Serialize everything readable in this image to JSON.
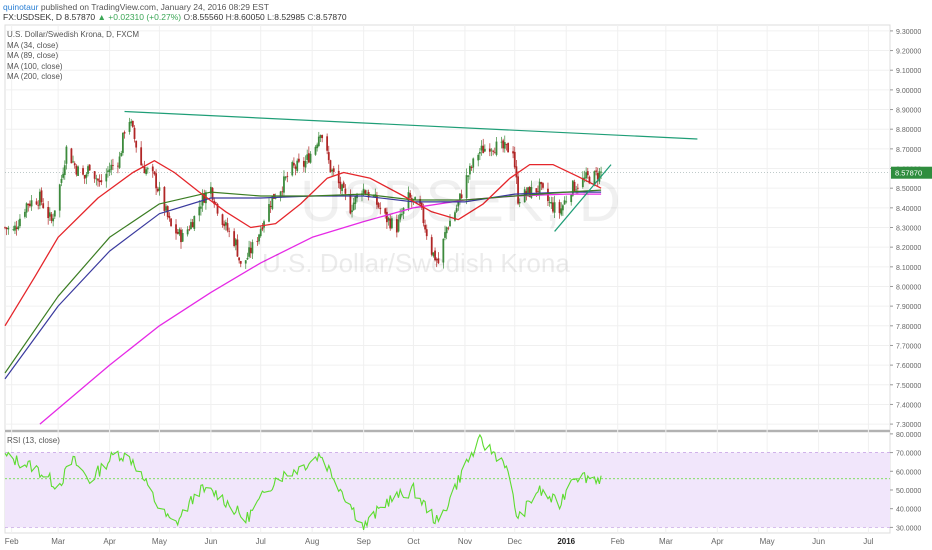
{
  "header": {
    "user": "quinotaur",
    "published": " published on TradingView.com, January 24, 2016 08:29 EST",
    "symbol": "FX:USDSEK, D",
    "last": "8.57870",
    "change": "▲ +0.02310 (+0.27%)",
    "o_label": "O:",
    "o_val": "8.55560",
    "h_label": "H:",
    "h_val": "8.60050",
    "l_label": "L:",
    "l_val": "8.52985",
    "c_label": "C:",
    "c_val": "8.57870"
  },
  "legend": {
    "title": "U.S. Dollar/Swedish Krona, D, FXCM",
    "ma34": "MA (34, close)",
    "ma89": "MA (89, close)",
    "ma100": "MA (100, close)",
    "ma200": "MA (200, close)"
  },
  "watermark": {
    "symbol": "USDSEK, D",
    "name": "U.S. Dollar/Swedish Krona"
  },
  "rsi_legend": "RSI (13, close)",
  "colors": {
    "ma34": "#e5262b",
    "ma89": "#3b7d23",
    "ma100": "#3a3a9e",
    "ma200": "#e62ae6",
    "trendline": "#1f9e77",
    "rsi": "#5ddc2f",
    "rsi_band": "#f1e6fb",
    "candle_up": "#3c8a3c",
    "candle_down": "#b02626",
    "last_price_tag": "#2f8d3e"
  },
  "chart_data": {
    "type": "candlestick",
    "x_axis_labels": [
      "Feb",
      "Mar",
      "Apr",
      "May",
      "Jun",
      "Jul",
      "Aug",
      "Sep",
      "Oct",
      "Nov",
      "Dec",
      "2016",
      "Feb",
      "Mar",
      "Apr",
      "May",
      "Jun",
      "Jul"
    ],
    "y_axis_labels": [
      "9.30000",
      "9.20000",
      "9.10000",
      "9.00000",
      "8.90000",
      "8.80000",
      "8.70000",
      "8.60000",
      "8.50000",
      "8.40000",
      "8.30000",
      "8.20000",
      "8.10000",
      "8.00000",
      "7.90000",
      "7.80000",
      "7.70000",
      "7.60000",
      "7.50000",
      "7.40000",
      "7.30000"
    ],
    "ylim": [
      7.27,
      9.33
    ],
    "last_price_label": "8.57870",
    "price_trajectory": [
      {
        "date": "2015-01-28",
        "close": 8.3
      },
      {
        "date": "2015-02-02",
        "close": 8.28
      },
      {
        "date": "2015-02-10",
        "close": 8.42
      },
      {
        "date": "2015-02-18",
        "close": 8.45
      },
      {
        "date": "2015-02-25",
        "close": 8.33
      },
      {
        "date": "2015-03-03",
        "close": 8.55
      },
      {
        "date": "2015-03-06",
        "close": 8.7
      },
      {
        "date": "2015-03-12",
        "close": 8.6
      },
      {
        "date": "2015-03-17",
        "close": 8.55
      },
      {
        "date": "2015-03-20",
        "close": 8.62
      },
      {
        "date": "2015-03-26",
        "close": 8.52
      },
      {
        "date": "2015-04-01",
        "close": 8.6
      },
      {
        "date": "2015-04-07",
        "close": 8.65
      },
      {
        "date": "2015-04-10",
        "close": 8.8
      },
      {
        "date": "2015-04-13",
        "close": 8.85
      },
      {
        "date": "2015-04-20",
        "close": 8.62
      },
      {
        "date": "2015-04-28",
        "close": 8.55
      },
      {
        "date": "2015-05-04",
        "close": 8.4
      },
      {
        "date": "2015-05-08",
        "close": 8.3
      },
      {
        "date": "2015-05-15",
        "close": 8.25
      },
      {
        "date": "2015-05-22",
        "close": 8.35
      },
      {
        "date": "2015-05-27",
        "close": 8.45
      },
      {
        "date": "2015-06-01",
        "close": 8.5
      },
      {
        "date": "2015-06-05",
        "close": 8.4
      },
      {
        "date": "2015-06-10",
        "close": 8.3
      },
      {
        "date": "2015-06-16",
        "close": 8.22
      },
      {
        "date": "2015-06-19",
        "close": 8.1
      },
      {
        "date": "2015-06-23",
        "close": 8.15
      },
      {
        "date": "2015-06-29",
        "close": 8.25
      },
      {
        "date": "2015-07-03",
        "close": 8.35
      },
      {
        "date": "2015-07-08",
        "close": 8.45
      },
      {
        "date": "2015-07-13",
        "close": 8.5
      },
      {
        "date": "2015-07-20",
        "close": 8.6
      },
      {
        "date": "2015-07-27",
        "close": 8.62
      },
      {
        "date": "2015-08-03",
        "close": 8.72
      },
      {
        "date": "2015-08-06",
        "close": 8.8
      },
      {
        "date": "2015-08-12",
        "close": 8.6
      },
      {
        "date": "2015-08-17",
        "close": 8.52
      },
      {
        "date": "2015-08-24",
        "close": 8.4
      },
      {
        "date": "2015-08-31",
        "close": 8.5
      },
      {
        "date": "2015-09-07",
        "close": 8.45
      },
      {
        "date": "2015-09-14",
        "close": 8.35
      },
      {
        "date": "2015-09-21",
        "close": 8.3
      },
      {
        "date": "2015-09-28",
        "close": 8.45
      },
      {
        "date": "2015-10-05",
        "close": 8.4
      },
      {
        "date": "2015-10-12",
        "close": 8.18
      },
      {
        "date": "2015-10-16",
        "close": 8.12
      },
      {
        "date": "2015-10-21",
        "close": 8.3
      },
      {
        "date": "2015-10-27",
        "close": 8.4
      },
      {
        "date": "2015-11-02",
        "close": 8.55
      },
      {
        "date": "2015-11-09",
        "close": 8.68
      },
      {
        "date": "2015-11-16",
        "close": 8.72
      },
      {
        "date": "2015-11-24",
        "close": 8.7
      },
      {
        "date": "2015-11-30",
        "close": 8.7
      },
      {
        "date": "2015-12-03",
        "close": 8.45
      },
      {
        "date": "2015-12-10",
        "close": 8.48
      },
      {
        "date": "2015-12-16",
        "close": 8.5
      },
      {
        "date": "2015-12-22",
        "close": 8.42
      },
      {
        "date": "2015-12-28",
        "close": 8.38
      },
      {
        "date": "2016-01-04",
        "close": 8.5
      },
      {
        "date": "2016-01-08",
        "close": 8.52
      },
      {
        "date": "2016-01-13",
        "close": 8.55
      },
      {
        "date": "2016-01-18",
        "close": 8.56
      },
      {
        "date": "2016-01-22",
        "close": 8.5787
      }
    ],
    "ma34": [
      {
        "date": "2015-01-28",
        "value": 7.8
      },
      {
        "date": "2015-02-15",
        "value": 8.05
      },
      {
        "date": "2015-03-01",
        "value": 8.25
      },
      {
        "date": "2015-03-25",
        "value": 8.45
      },
      {
        "date": "2015-04-15",
        "value": 8.58
      },
      {
        "date": "2015-04-28",
        "value": 8.64
      },
      {
        "date": "2015-05-10",
        "value": 8.58
      },
      {
        "date": "2015-05-25",
        "value": 8.48
      },
      {
        "date": "2015-06-10",
        "value": 8.38
      },
      {
        "date": "2015-06-25",
        "value": 8.3
      },
      {
        "date": "2015-07-10",
        "value": 8.32
      },
      {
        "date": "2015-07-25",
        "value": 8.42
      },
      {
        "date": "2015-08-10",
        "value": 8.55
      },
      {
        "date": "2015-08-20",
        "value": 8.58
      },
      {
        "date": "2015-09-05",
        "value": 8.55
      },
      {
        "date": "2015-09-25",
        "value": 8.46
      },
      {
        "date": "2015-10-12",
        "value": 8.38
      },
      {
        "date": "2015-10-28",
        "value": 8.34
      },
      {
        "date": "2015-11-12",
        "value": 8.42
      },
      {
        "date": "2015-11-28",
        "value": 8.55
      },
      {
        "date": "2015-12-10",
        "value": 8.62
      },
      {
        "date": "2015-12-24",
        "value": 8.62
      },
      {
        "date": "2016-01-08",
        "value": 8.56
      },
      {
        "date": "2016-01-22",
        "value": 8.5
      }
    ],
    "ma89": [
      {
        "date": "2015-01-28",
        "value": 7.56
      },
      {
        "date": "2015-03-01",
        "value": 7.95
      },
      {
        "date": "2015-04-01",
        "value": 8.25
      },
      {
        "date": "2015-05-01",
        "value": 8.42
      },
      {
        "date": "2015-06-01",
        "value": 8.48
      },
      {
        "date": "2015-07-01",
        "value": 8.46
      },
      {
        "date": "2015-08-01",
        "value": 8.46
      },
      {
        "date": "2015-09-01",
        "value": 8.47
      },
      {
        "date": "2015-10-01",
        "value": 8.44
      },
      {
        "date": "2015-11-01",
        "value": 8.44
      },
      {
        "date": "2015-12-01",
        "value": 8.46
      },
      {
        "date": "2016-01-01",
        "value": 8.48
      },
      {
        "date": "2016-01-22",
        "value": 8.49
      }
    ],
    "ma100": [
      {
        "date": "2015-01-28",
        "value": 7.53
      },
      {
        "date": "2015-03-01",
        "value": 7.9
      },
      {
        "date": "2015-04-01",
        "value": 8.18
      },
      {
        "date": "2015-05-01",
        "value": 8.37
      },
      {
        "date": "2015-06-01",
        "value": 8.45
      },
      {
        "date": "2015-07-01",
        "value": 8.45
      },
      {
        "date": "2015-08-01",
        "value": 8.46
      },
      {
        "date": "2015-09-01",
        "value": 8.46
      },
      {
        "date": "2015-10-01",
        "value": 8.43
      },
      {
        "date": "2015-11-01",
        "value": 8.43
      },
      {
        "date": "2015-12-01",
        "value": 8.47
      },
      {
        "date": "2016-01-01",
        "value": 8.48
      },
      {
        "date": "2016-01-22",
        "value": 8.48
      }
    ],
    "ma200": [
      {
        "date": "2015-02-18",
        "value": 7.3
      },
      {
        "date": "2015-04-01",
        "value": 7.6
      },
      {
        "date": "2015-05-01",
        "value": 7.8
      },
      {
        "date": "2015-06-01",
        "value": 7.97
      },
      {
        "date": "2015-07-01",
        "value": 8.12
      },
      {
        "date": "2015-08-01",
        "value": 8.25
      },
      {
        "date": "2015-09-01",
        "value": 8.33
      },
      {
        "date": "2015-10-01",
        "value": 8.4
      },
      {
        "date": "2015-11-01",
        "value": 8.44
      },
      {
        "date": "2015-12-01",
        "value": 8.46
      },
      {
        "date": "2016-01-01",
        "value": 8.47
      },
      {
        "date": "2016-01-22",
        "value": 8.47
      }
    ],
    "trendlines": [
      {
        "start": {
          "date": "2015-04-10",
          "price": 8.89
        },
        "end": {
          "date": "2016-03-20",
          "price": 8.75
        }
      },
      {
        "start": {
          "date": "2015-12-25",
          "price": 8.28
        },
        "end": {
          "date": "2016-01-28",
          "price": 8.62
        }
      }
    ],
    "rsi": {
      "y_axis_labels": [
        "80.0000",
        "70.0000",
        "60.0000",
        "50.0000",
        "40.0000",
        "30.0000"
      ],
      "ylim": [
        27,
        81
      ],
      "band": [
        30,
        70
      ],
      "current": 56,
      "values": [
        {
          "date": "2015-01-28",
          "value": 68
        },
        {
          "date": "2015-02-15",
          "value": 62
        },
        {
          "date": "2015-03-01",
          "value": 52
        },
        {
          "date": "2015-03-10",
          "value": 66
        },
        {
          "date": "2015-03-20",
          "value": 55
        },
        {
          "date": "2015-04-05",
          "value": 70
        },
        {
          "date": "2015-04-15",
          "value": 66
        },
        {
          "date": "2015-05-01",
          "value": 40
        },
        {
          "date": "2015-05-10",
          "value": 31
        },
        {
          "date": "2015-05-25",
          "value": 50
        },
        {
          "date": "2015-06-05",
          "value": 48
        },
        {
          "date": "2015-06-22",
          "value": 34
        },
        {
          "date": "2015-07-10",
          "value": 56
        },
        {
          "date": "2015-07-25",
          "value": 62
        },
        {
          "date": "2015-08-06",
          "value": 69
        },
        {
          "date": "2015-08-20",
          "value": 48
        },
        {
          "date": "2015-09-01",
          "value": 30
        },
        {
          "date": "2015-09-15",
          "value": 44
        },
        {
          "date": "2015-10-01",
          "value": 50
        },
        {
          "date": "2015-10-16",
          "value": 32
        },
        {
          "date": "2015-11-01",
          "value": 63
        },
        {
          "date": "2015-11-10",
          "value": 76
        },
        {
          "date": "2015-11-25",
          "value": 65
        },
        {
          "date": "2015-12-03",
          "value": 34
        },
        {
          "date": "2015-12-15",
          "value": 50
        },
        {
          "date": "2015-12-28",
          "value": 42
        },
        {
          "date": "2016-01-05",
          "value": 58
        },
        {
          "date": "2016-01-22",
          "value": 56
        }
      ]
    }
  }
}
